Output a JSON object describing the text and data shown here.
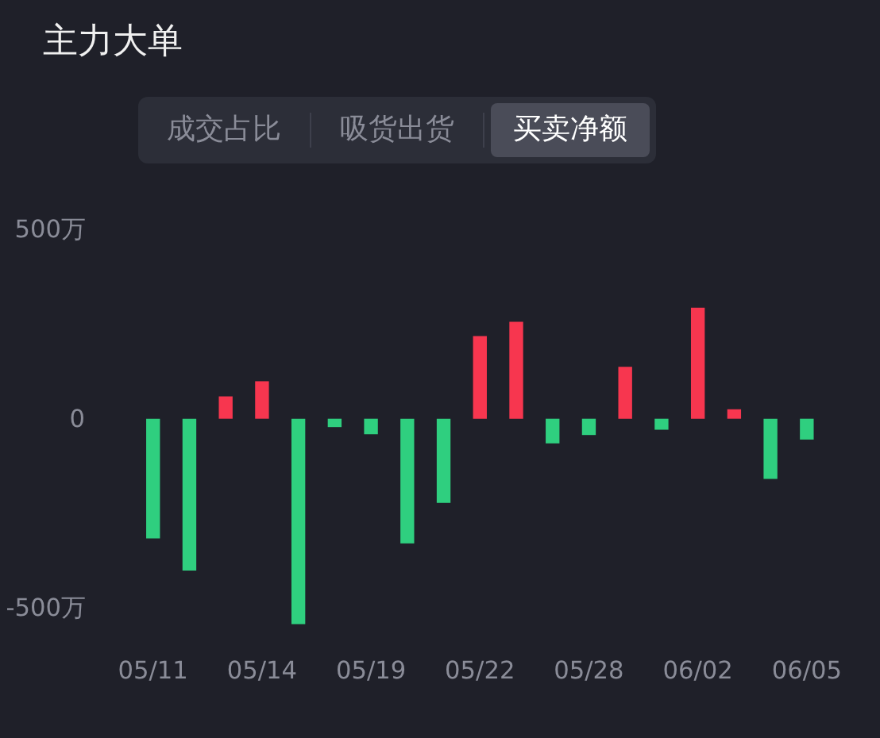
{
  "chart_data": {
    "type": "bar",
    "title": "主力大单",
    "annotations": [
      "成交占比",
      "吸货出货",
      "买卖净额"
    ],
    "categories": [
      "05/11",
      null,
      null,
      "05/14",
      null,
      null,
      "05/19",
      null,
      null,
      "05/22",
      null,
      null,
      "05/28",
      null,
      null,
      "06/02",
      null,
      null,
      "06/05"
    ],
    "values": [
      -316,
      -401,
      59,
      99,
      -542,
      -22,
      -41,
      -329,
      -222,
      218,
      256,
      -65,
      -43,
      137,
      -29,
      293,
      25,
      -159,
      -55
    ],
    "colors": [
      "#2fcf7f",
      "#2fcf7f",
      "#f7364f",
      "#f7364f",
      "#2fcf7f",
      "#2fcf7f",
      "#2fcf7f",
      "#2fcf7f",
      "#2fcf7f",
      "#f7364f",
      "#f7364f",
      "#2fcf7f",
      "#2fcf7f",
      "#f7364f",
      "#2fcf7f",
      "#f7364f",
      "#f7364f",
      "#2fcf7f",
      "#2fcf7f"
    ],
    "ylim": [
      -560,
      500
    ],
    "yticks": [
      {
        "value": 500,
        "label": "500万"
      },
      0,
      {
        "value": -500,
        "label": "-500万"
      }
    ],
    "grid": false
  }
}
